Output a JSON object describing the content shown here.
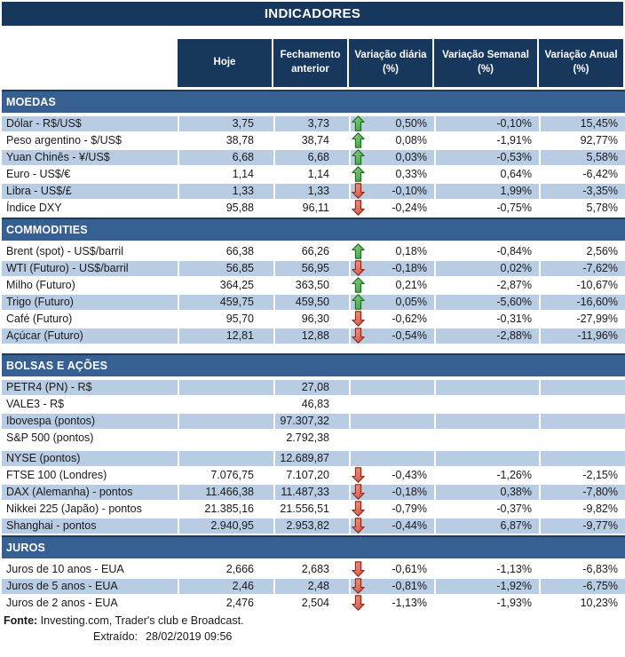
{
  "title": "INDICADORES",
  "columns": [
    "Hoje",
    "Fechamento anterior",
    "Variação diária (%)",
    "Variação Semanal (%)",
    "Variação Anual (%)"
  ],
  "sections": [
    {
      "name": "MOEDAS",
      "rows": [
        {
          "label": "Dólar - R$/US$",
          "hoje": "3,75",
          "fechamento": "3,73",
          "arrow": "up",
          "diaria": "0,50%",
          "semanal": "-0,10%",
          "anual": "15,45%"
        },
        {
          "label": "Peso argentino - $/US$",
          "hoje": "38,78",
          "fechamento": "38,74",
          "arrow": "up",
          "diaria": "0,08%",
          "semanal": "-1,91%",
          "anual": "92,77%"
        },
        {
          "label": "Yuan Chinês - ¥/US$",
          "hoje": "6,68",
          "fechamento": "6,68",
          "arrow": "up",
          "diaria": "0,03%",
          "semanal": "-0,53%",
          "anual": "5,58%"
        },
        {
          "label": "Euro - US$/€",
          "hoje": "1,14",
          "fechamento": "1,14",
          "arrow": "up",
          "diaria": "0,33%",
          "semanal": "0,64%",
          "anual": "-6,42%"
        },
        {
          "label": "Libra - US$/£",
          "hoje": "1,33",
          "fechamento": "1,33",
          "arrow": "down",
          "diaria": "-0,10%",
          "semanal": "1,99%",
          "anual": "-3,35%"
        },
        {
          "label": "Índice DXY",
          "hoje": "95,88",
          "fechamento": "96,11",
          "arrow": "down",
          "diaria": "-0,24%",
          "semanal": "-0,75%",
          "anual": "5,78%"
        }
      ]
    },
    {
      "name": "COMMODITIES",
      "rows": [
        {
          "label": "Brent (spot) - US$/barril",
          "hoje": "66,38",
          "fechamento": "66,26",
          "arrow": "up",
          "diaria": "0,18%",
          "semanal": "-0,84%",
          "anual": "2,56%"
        },
        {
          "label": "WTI (Futuro) - US$/barril",
          "hoje": "56,85",
          "fechamento": "56,95",
          "arrow": "down",
          "diaria": "-0,18%",
          "semanal": "0,02%",
          "anual": "-7,62%"
        },
        {
          "label": "Milho (Futuro)",
          "hoje": "364,25",
          "fechamento": "363,50",
          "arrow": "up",
          "diaria": "0,21%",
          "semanal": "-2,87%",
          "anual": "-10,67%"
        },
        {
          "label": "Trigo (Futuro)",
          "hoje": "459,75",
          "fechamento": "459,50",
          "arrow": "up",
          "diaria": "0,05%",
          "semanal": "-5,60%",
          "anual": "-16,60%"
        },
        {
          "label": "Café (Futuro)",
          "hoje": "95,70",
          "fechamento": "96,30",
          "arrow": "down",
          "diaria": "-0,62%",
          "semanal": "-0,31%",
          "anual": "-27,99%"
        },
        {
          "label": "Açúcar (Futuro)",
          "hoje": "12,81",
          "fechamento": "12,88",
          "arrow": "down",
          "diaria": "-0,54%",
          "semanal": "-2,88%",
          "anual": "-11,96%"
        }
      ]
    },
    {
      "name": "BOLSAS E AÇÕES",
      "rows": [
        {
          "label": "PETR4 (PN) - R$",
          "hoje": "",
          "fechamento": "27,08",
          "arrow": null,
          "diaria": "",
          "semanal": "",
          "anual": ""
        },
        {
          "label": "VALE3 - R$",
          "hoje": "",
          "fechamento": "46,83",
          "arrow": null,
          "diaria": "",
          "semanal": "",
          "anual": ""
        },
        {
          "label": "Ibovespa (pontos)",
          "hoje": "",
          "fechamento": "97.307,32",
          "arrow": null,
          "diaria": "",
          "semanal": "",
          "anual": ""
        },
        {
          "label": "S&P 500 (pontos)",
          "hoje": "",
          "fechamento": "2.792,38",
          "arrow": null,
          "diaria": "",
          "semanal": "",
          "anual": ""
        },
        {
          "label": "NYSE (pontos)",
          "hoje": "",
          "fechamento": "12.689,87",
          "arrow": null,
          "diaria": "",
          "semanal": "",
          "anual": "",
          "gap_above": true
        },
        {
          "label": "FTSE 100 (Londres)",
          "hoje": "7.076,75",
          "fechamento": "7.107,20",
          "arrow": "down",
          "diaria": "-0,43%",
          "semanal": "-1,26%",
          "anual": "-2,15%"
        },
        {
          "label": "DAX (Alemanha) - pontos",
          "hoje": "11.466,38",
          "fechamento": "11.487,33",
          "arrow": "down",
          "diaria": "-0,18%",
          "semanal": "0,38%",
          "anual": "-7,80%"
        },
        {
          "label": "Nikkei 225 (Japão) - pontos",
          "hoje": "21.385,16",
          "fechamento": "21.556,51",
          "arrow": "down",
          "diaria": "-0,79%",
          "semanal": "-0,37%",
          "anual": "-9,82%"
        },
        {
          "label": "Shanghai - pontos",
          "hoje": "2.940,95",
          "fechamento": "2.953,82",
          "arrow": "down",
          "diaria": "-0,44%",
          "semanal": "6,87%",
          "anual": "-9,77%"
        }
      ]
    },
    {
      "name": "JUROS",
      "rows": [
        {
          "label": "Juros de 10 anos - EUA",
          "hoje": "2,666",
          "fechamento": "2,683",
          "arrow": "down",
          "diaria": "-0,61%",
          "semanal": "-1,13%",
          "anual": "-6,83%"
        },
        {
          "label": "Juros de 5 anos - EUA",
          "hoje": "2,46",
          "fechamento": "2,48",
          "arrow": "down",
          "diaria": "-0,81%",
          "semanal": "-1,92%",
          "anual": "-6,75%"
        },
        {
          "label": "Juros de 2 anos - EUA",
          "hoje": "2,476",
          "fechamento": "2,504",
          "arrow": "down",
          "diaria": "-1,13%",
          "semanal": "-1,93%",
          "anual": "10,23%"
        }
      ]
    }
  ],
  "footer": {
    "fonte_label": "Fonte:",
    "fonte_text": " Investing.com, Trader's club e Broadcast.",
    "extraido_label": "Extraído:",
    "extraido_value": "28/02/2019 09:56"
  },
  "colors": {
    "navy": "#17375D",
    "steel": "#376092",
    "steel_edge": "#1D3B5E",
    "light_row": "#B8CCE4",
    "text": "#1A1A1A",
    "up_arrow": {
      "fill_light": "#8FD18F",
      "fill_dark": "#3A9C3A",
      "stroke": "#1F6B1F"
    },
    "down_arrow": {
      "fill_light": "#F0A094",
      "fill_dark": "#CC4B3B",
      "stroke": "#8F2413"
    }
  }
}
